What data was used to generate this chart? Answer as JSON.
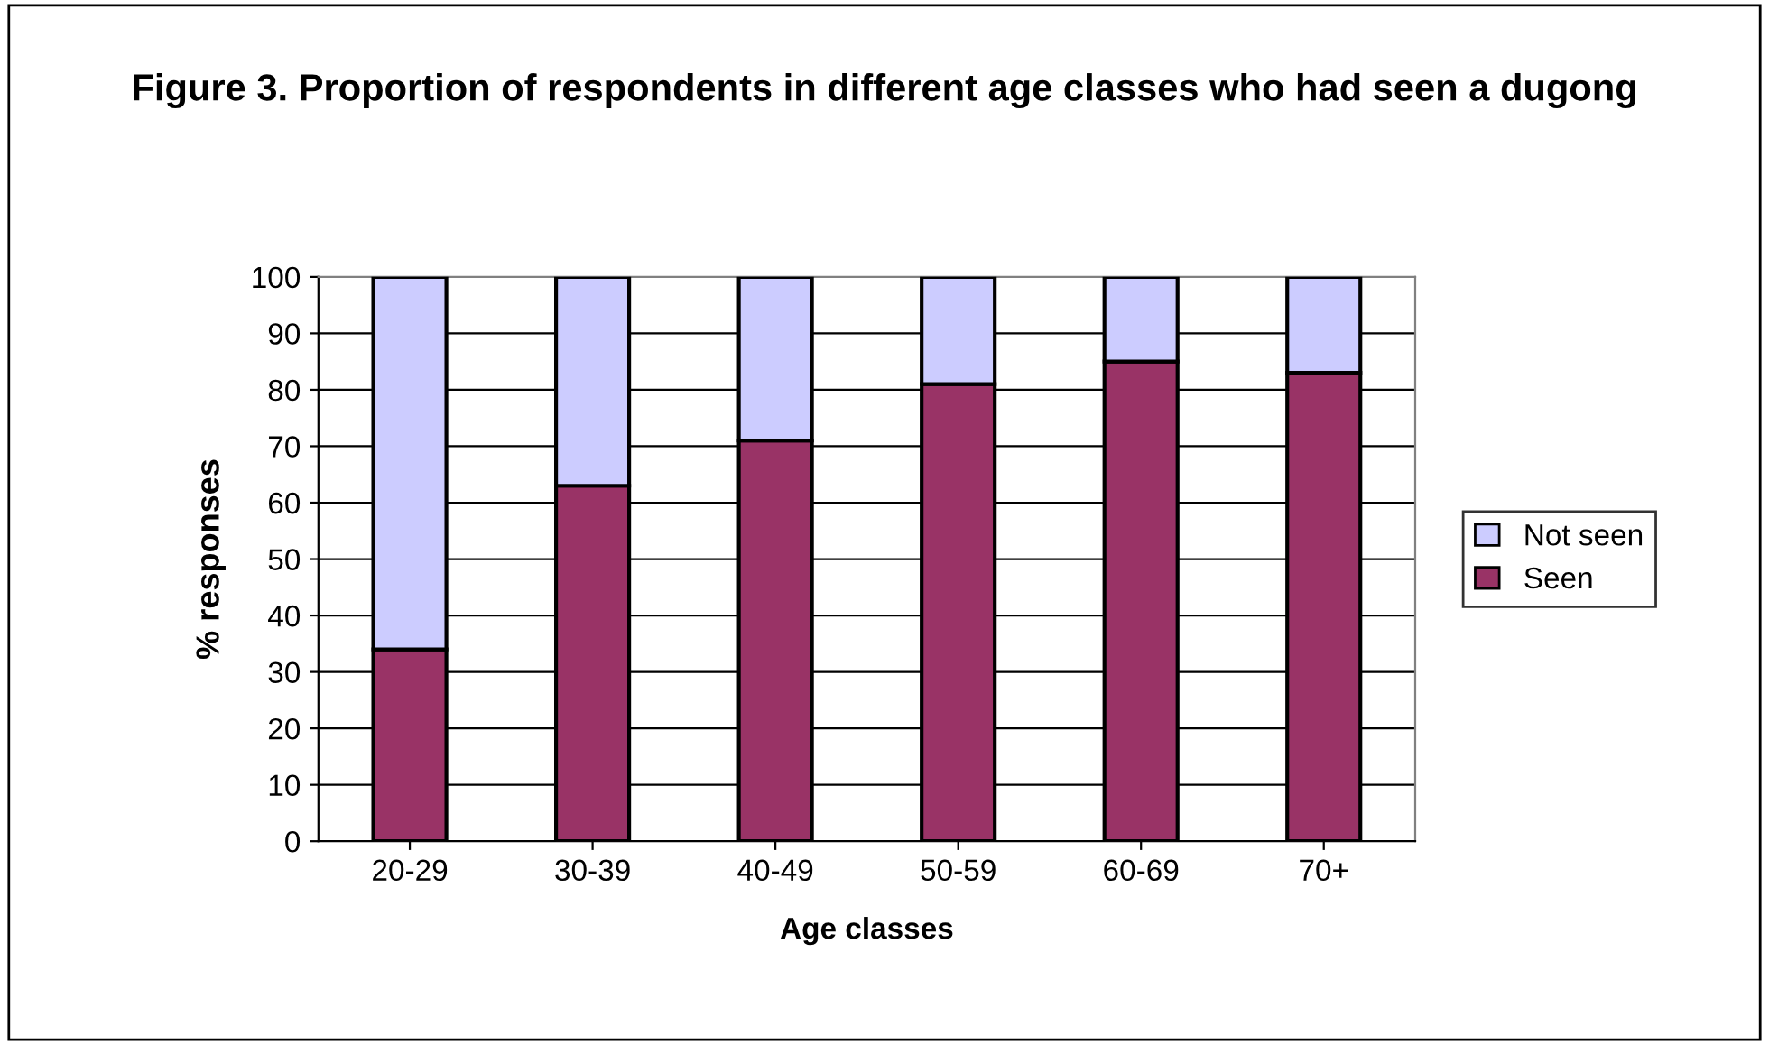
{
  "chart_data": {
    "type": "bar",
    "stacked": true,
    "title": "Figure 3. Proportion of respondents in different age classes who had seen a dugong",
    "xlabel": "Age classes",
    "ylabel": "% responses",
    "categories": [
      "20-29",
      "30-39",
      "40-49",
      "50-59",
      "60-69",
      "70+"
    ],
    "series": [
      {
        "name": "Seen",
        "color": "#993366",
        "values": [
          34,
          63,
          71,
          81,
          85,
          83
        ]
      },
      {
        "name": "Not seen",
        "color": "#ccccff",
        "values": [
          66,
          37,
          29,
          19,
          15,
          17
        ]
      }
    ],
    "ylim": [
      0,
      100
    ],
    "yticks": [
      0,
      10,
      20,
      30,
      40,
      50,
      60,
      70,
      80,
      90,
      100
    ],
    "grid": "y",
    "legend": "right"
  }
}
